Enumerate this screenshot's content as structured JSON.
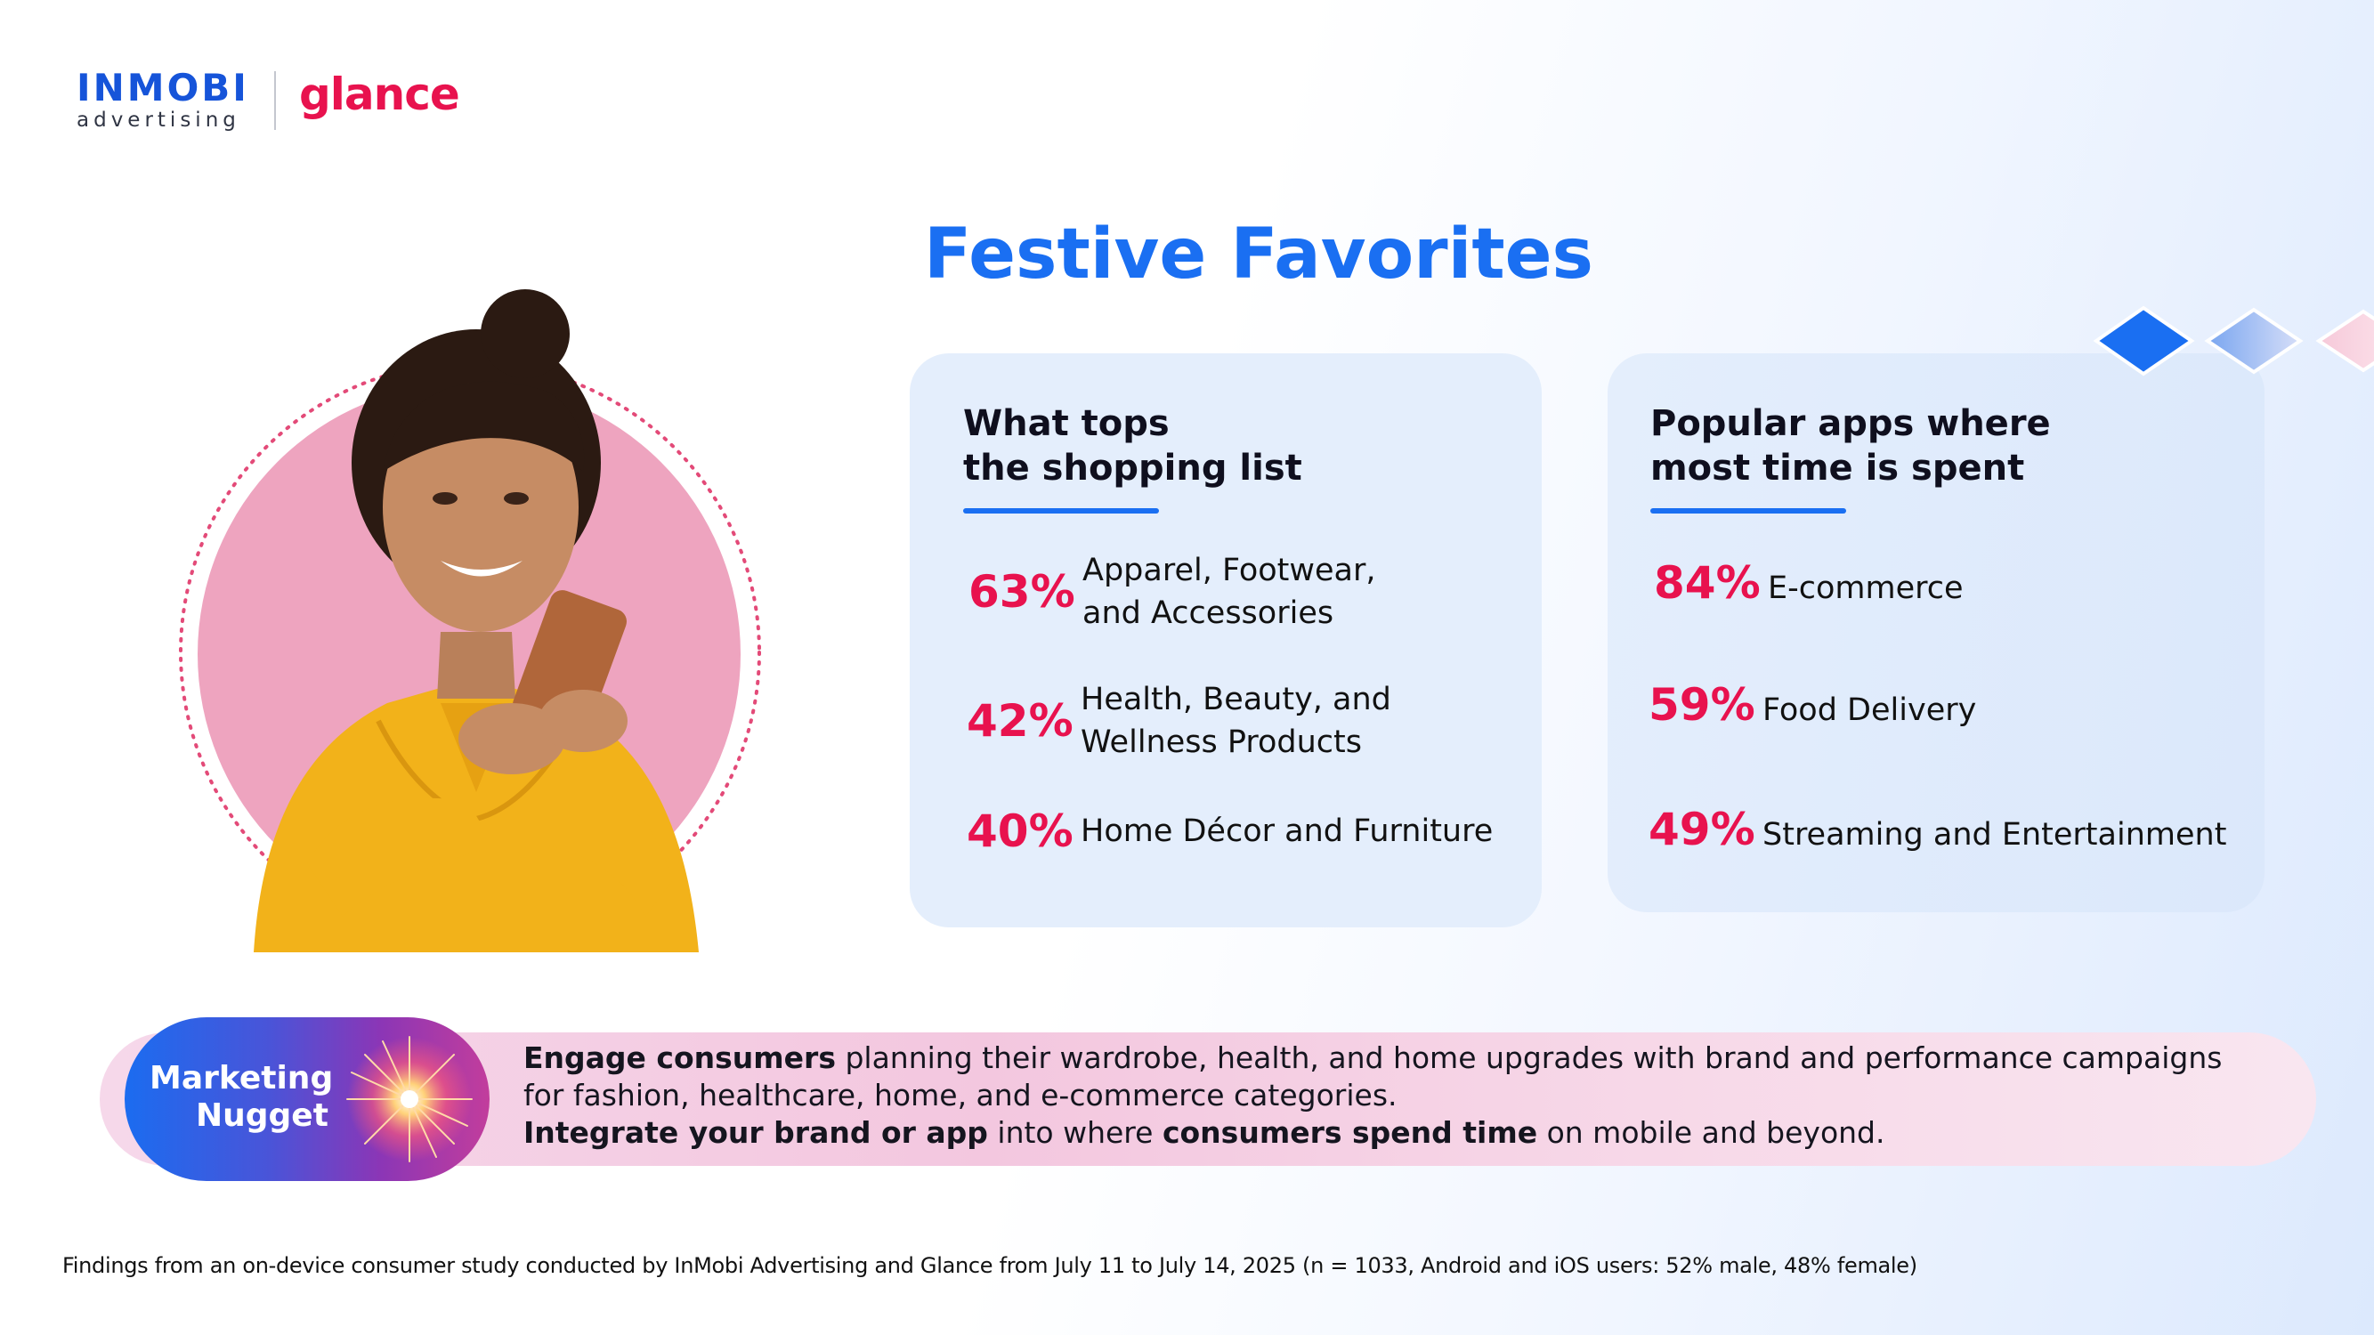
{
  "brand": {
    "inmobi_wordmark": "INMOBI",
    "inmobi_sub": "advertising",
    "glance_wordmark": "glance"
  },
  "title": "Festive Favorites",
  "shopping": {
    "heading_line1": "What tops",
    "heading_line2": "the shopping list",
    "items": [
      {
        "pct": "63%",
        "label_line1": "Apparel, Footwear,",
        "label_line2": "and Accessories"
      },
      {
        "pct": "42%",
        "label_line1": "Health, Beauty, and",
        "label_line2": "Wellness Products"
      },
      {
        "pct": "40%",
        "label_line1": "Home Décor and Furniture",
        "label_line2": ""
      }
    ]
  },
  "apps": {
    "heading_line1": "Popular apps where",
    "heading_line2": "most time is spent",
    "items": [
      {
        "pct": "84%",
        "label": "E-commerce"
      },
      {
        "pct": "59%",
        "label": "Food Delivery"
      },
      {
        "pct": "49%",
        "label": "Streaming and Entertainment"
      }
    ]
  },
  "nugget": {
    "label_line1": "Marketing",
    "label_line2": "Nugget",
    "row1_bold": "Engage consumers",
    "row1_rest": " planning their wardrobe, health, and home upgrades with brand and performance campaigns",
    "row2": "for fashion, healthcare, home, and e-commerce categories.",
    "row3_bold1": "Integrate your brand or app",
    "row3_mid": " into where ",
    "row3_bold2": "consumers spend time",
    "row3_rest": " on mobile and beyond."
  },
  "footnote": "Findings from an on-device consumer study conducted by InMobi Advertising and Glance from July 11 to July 14, 2025 (n = 1033, Android and iOS users: 52% male, 48% female)",
  "icons": {
    "hero": "woman-with-phone-portrait",
    "sparkle": "sparkle-icon",
    "diamonds": "diamond-decoration-icon"
  },
  "colors": {
    "accent_blue": "#1a6ff2",
    "accent_pink": "#e8124e",
    "card_bg": "#e4eefc"
  }
}
